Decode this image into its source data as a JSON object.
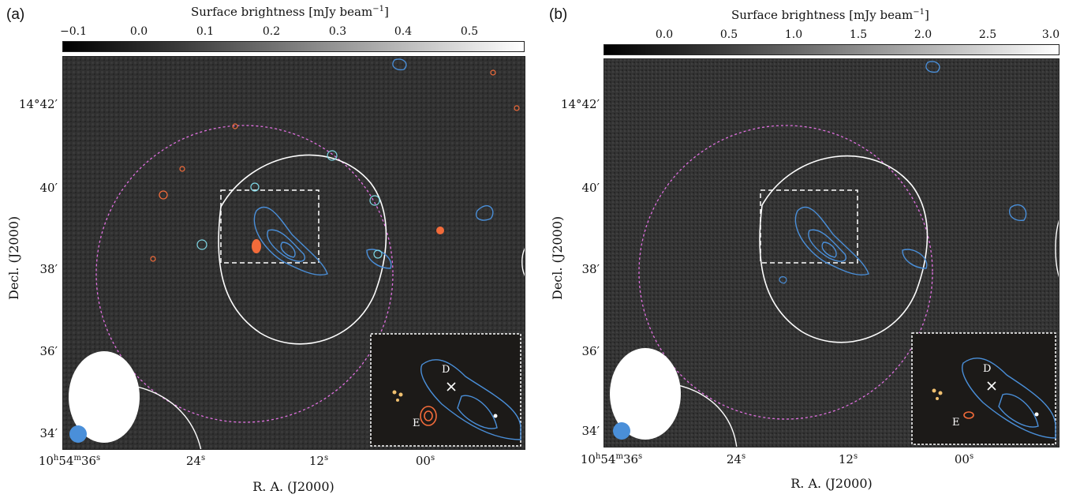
{
  "panels": {
    "a": {
      "label": "(a)",
      "colorbar": {
        "title_main": "Surface brightness [mJy beam",
        "title_exp": "−1",
        "title_end": "]",
        "ticks": [
          "−0.1",
          "0.0",
          "0.1",
          "0.2",
          "0.3",
          "0.4",
          "0.5"
        ]
      },
      "dec_ticks": [
        "14°42′",
        "40′",
        "38′",
        "36′",
        "34′"
      ],
      "ra_ticks": [
        {
          "base": "10",
          "h": "h",
          "m_val": "54",
          "m": "m",
          "s_val": "36",
          "s": "s"
        },
        {
          "base": "24",
          "h": "",
          "m_val": "",
          "m": "",
          "s_val": "",
          "s": "s"
        },
        {
          "base": "12",
          "h": "",
          "m_val": "",
          "m": "",
          "s_val": "",
          "s": "s"
        },
        {
          "base": "00",
          "h": "",
          "m_val": "",
          "m": "",
          "s_val": "",
          "s": "s"
        }
      ],
      "xlabel": "R. A. (J2000)",
      "ylabel": "Decl. (J2000)",
      "inset_labels": {
        "d": "D",
        "e": "E"
      }
    },
    "b": {
      "label": "(b)",
      "colorbar": {
        "title_main": "Surface brightness [mJy beam",
        "title_exp": "−1",
        "title_end": "]",
        "ticks": [
          "0.0",
          "0.5",
          "1.0",
          "1.5",
          "2.0",
          "2.5",
          "3.0"
        ]
      },
      "dec_ticks": [
        "14°42′",
        "40′",
        "38′",
        "36′",
        "34′"
      ],
      "ra_ticks": [
        {
          "base": "10",
          "h": "h",
          "m_val": "54",
          "m": "m",
          "s_val": "36",
          "s": "s"
        },
        {
          "base": "24",
          "h": "",
          "m_val": "",
          "m": "",
          "s_val": "",
          "s": "s"
        },
        {
          "base": "12",
          "h": "",
          "m_val": "",
          "m": "",
          "s_val": "",
          "s": "s"
        },
        {
          "base": "00",
          "h": "",
          "m_val": "",
          "m": "",
          "s_val": "",
          "s": "s"
        }
      ],
      "xlabel": "R. A. (J2000)",
      "ylabel": "Decl. (J2000)",
      "inset_labels": {
        "d": "D",
        "e": "E"
      }
    }
  },
  "colors": {
    "contour_blue": "#4a8fd9",
    "contour_orange": "#f26b3a",
    "circle_magenta": "#e070e0",
    "contour_white": "#ffffff",
    "map_background": "#2a2a2a"
  }
}
